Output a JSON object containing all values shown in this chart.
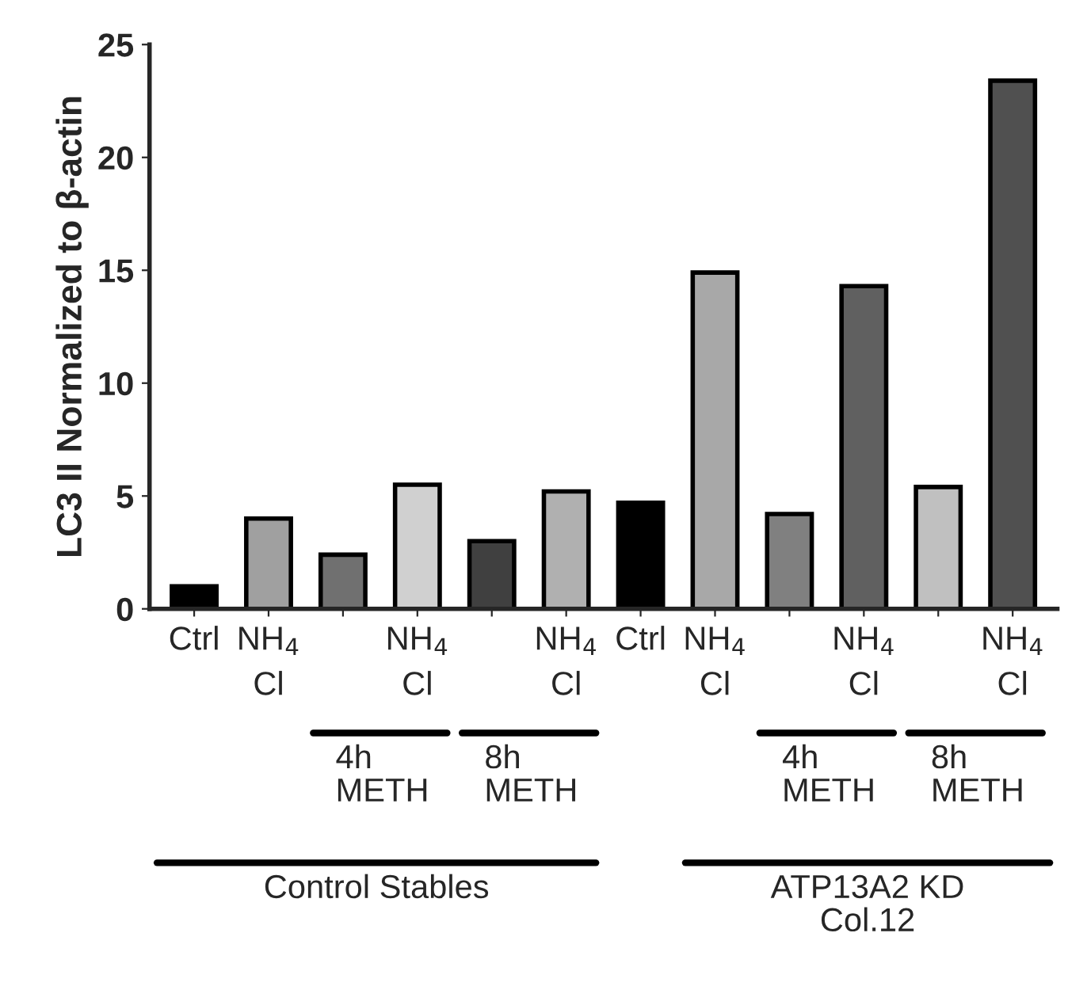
{
  "chart_data": {
    "type": "bar",
    "ylabel": "LC3 II Normalized to β-actin",
    "categories": [
      "Ctrl",
      "NH$_{4}$\nCl",
      null,
      "NH$_{4}$\nCl",
      null,
      "NH$_{4}$\nCl",
      "Ctrl",
      "NH$_{4}$\nCl",
      null,
      "NH$_{4}$\nCl",
      null,
      "NH$_{4}$\nCl"
    ],
    "values": [
      1.0,
      4.0,
      2.4,
      5.5,
      3.0,
      5.2,
      4.7,
      14.9,
      4.2,
      14.3,
      5.4,
      23.4
    ],
    "colors": [
      "#000000",
      "#a0a0a0",
      "#707070",
      "#d0d0d0",
      "#404040",
      "#b0b0b0",
      "#000000",
      "#a8a8a8",
      "#808080",
      "#606060",
      "#c0c0c0",
      "#505050"
    ],
    "ylim": [
      0,
      25
    ],
    "yticks": [
      0,
      5,
      10,
      15,
      20,
      25
    ],
    "grid": false,
    "annotations": [
      "4h\nMETH",
      "8h\nMETH",
      "4h\nMETH",
      "8h\nMETH",
      "Control Stables",
      "ATP13A2 KD\nCol.12"
    ]
  }
}
